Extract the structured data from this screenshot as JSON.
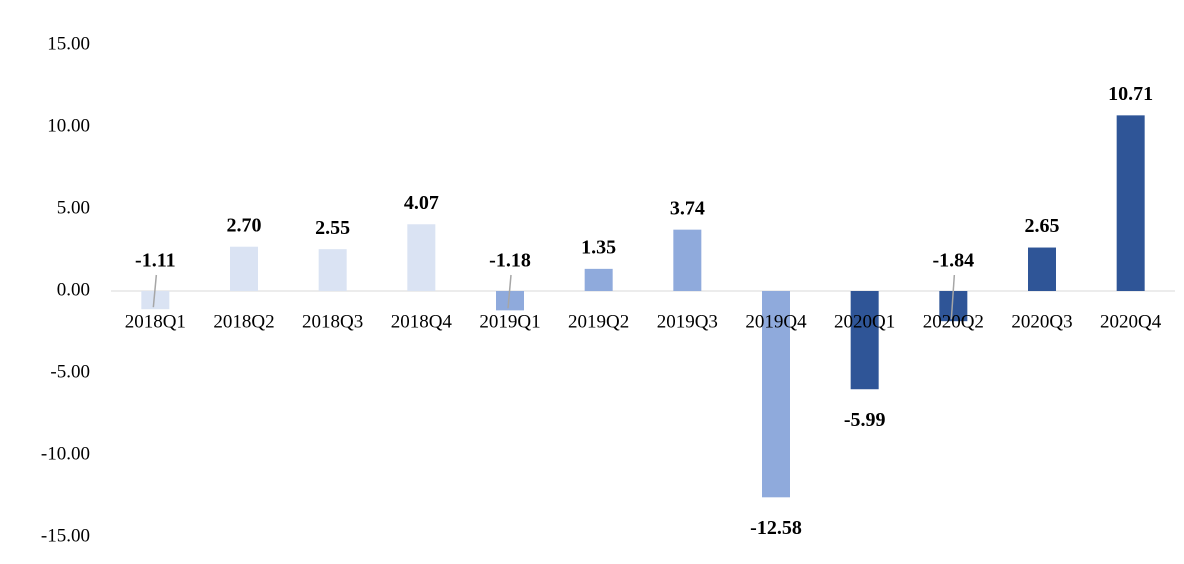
{
  "chart_data": {
    "type": "bar",
    "categories": [
      "2018Q1",
      "2018Q2",
      "2018Q3",
      "2018Q4",
      "2019Q1",
      "2019Q2",
      "2019Q3",
      "2019Q4",
      "2020Q1",
      "2020Q2",
      "2020Q3",
      "2020Q4"
    ],
    "values": [
      -1.11,
      2.7,
      2.55,
      4.07,
      -1.18,
      1.35,
      3.74,
      -12.58,
      -5.99,
      -1.84,
      2.65,
      10.71
    ],
    "value_labels": [
      "-1.11",
      "2.70",
      "2.55",
      "4.07",
      "-1.18",
      "1.35",
      "3.74",
      "-12.58",
      "-5.99",
      "-1.84",
      "2.65",
      "10.71"
    ],
    "colors": [
      "#dae3f3",
      "#dae3f3",
      "#dae3f3",
      "#dae3f3",
      "#8faadc",
      "#8faadc",
      "#8faadc",
      "#8faadc",
      "#2f5597",
      "#2f5597",
      "#2f5597",
      "#2f5597"
    ],
    "ylim": [
      -15,
      15
    ],
    "yticks": [
      {
        "value": 15,
        "label": "15.00"
      },
      {
        "value": 10,
        "label": "10.00"
      },
      {
        "value": 5,
        "label": "5.00"
      },
      {
        "value": 0,
        "label": "0.00"
      },
      {
        "value": -5,
        "label": "-5.00"
      },
      {
        "value": -10,
        "label": "-10.00"
      },
      {
        "value": -15,
        "label": "-15.00"
      }
    ],
    "grid": false
  }
}
